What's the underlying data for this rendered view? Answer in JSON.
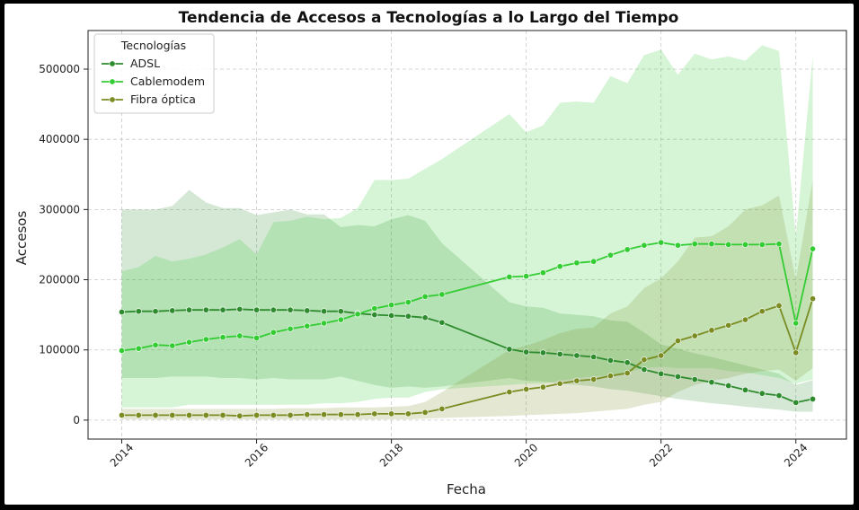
{
  "chart_data": {
    "type": "line",
    "title": "Tendencia de Accesos a Tecnologías a lo Largo del Tiempo",
    "xlabel": "Fecha",
    "ylabel": "Accesos",
    "xlim": [
      2013.5,
      2024.75
    ],
    "ylim": [
      -27000,
      555000
    ],
    "x_ticks": [
      2014,
      2016,
      2018,
      2020,
      2022,
      2024
    ],
    "y_ticks": [
      0,
      100000,
      200000,
      300000,
      400000,
      500000
    ],
    "grid": true,
    "legend": {
      "title": "Tecnologías",
      "placement": "top-left"
    },
    "x": [
      2014.0,
      2014.25,
      2014.5,
      2014.75,
      2015.0,
      2015.25,
      2015.5,
      2015.75,
      2016.0,
      2016.25,
      2016.5,
      2016.75,
      2017.0,
      2017.25,
      2017.5,
      2017.75,
      2018.0,
      2018.25,
      2018.5,
      2018.75,
      2019.75,
      2020.0,
      2020.25,
      2020.5,
      2020.75,
      2021.0,
      2021.25,
      2021.5,
      2021.75,
      2022.0,
      2022.25,
      2022.5,
      2022.75,
      2023.0,
      2023.25,
      2023.5,
      2023.75,
      2024.0,
      2024.25
    ],
    "series": [
      {
        "name": "ADSL",
        "color": "#2e8b2e",
        "values": [
          154000,
          155000,
          155000,
          156000,
          157000,
          157000,
          157000,
          158000,
          157000,
          157000,
          157000,
          156000,
          155000,
          155000,
          152000,
          150000,
          149000,
          148000,
          146000,
          139000,
          101000,
          97000,
          96000,
          94000,
          92000,
          90000,
          85000,
          82000,
          72000,
          66000,
          62000,
          58000,
          54000,
          49000,
          43000,
          38000,
          35000,
          25000,
          30000
        ],
        "band_upper": [
          300000,
          300000,
          300000,
          305000,
          328000,
          310000,
          302000,
          302000,
          292000,
          296000,
          300000,
          293000,
          293000,
          275000,
          278000,
          276000,
          286000,
          292000,
          284000,
          252000,
          168000,
          162000,
          160000,
          152000,
          150000,
          148000,
          142000,
          140000,
          125000,
          108000,
          102000,
          95000,
          90000,
          84000,
          78000,
          72000,
          66000,
          50000,
          57000
        ],
        "band_lower": [
          60000,
          60000,
          60000,
          62000,
          62000,
          62000,
          60000,
          60000,
          58000,
          60000,
          58000,
          58000,
          58000,
          62000,
          56000,
          50000,
          46000,
          48000,
          46000,
          48000,
          60000,
          56000,
          55000,
          52000,
          50000,
          48000,
          44000,
          42000,
          38000,
          34000,
          30000,
          27000,
          24000,
          22000,
          19000,
          17000,
          15000,
          12000,
          12000
        ]
      },
      {
        "name": "Cablemodem",
        "color": "#33cc33",
        "values": [
          99000,
          102000,
          107000,
          106000,
          111000,
          115000,
          118000,
          120000,
          117000,
          125000,
          130000,
          134000,
          138000,
          143000,
          151000,
          159000,
          164000,
          168000,
          176000,
          179000,
          204000,
          205000,
          210000,
          219000,
          224000,
          226000,
          235000,
          243000,
          249000,
          253000,
          249000,
          251000,
          251000,
          250000,
          250000,
          250000,
          251000,
          138000,
          244000
        ],
        "band_upper": [
          212000,
          218000,
          234000,
          226000,
          230000,
          236000,
          246000,
          258000,
          236000,
          282000,
          284000,
          290000,
          286000,
          288000,
          302000,
          342000,
          342000,
          344000,
          358000,
          372000,
          436000,
          410000,
          420000,
          452000,
          454000,
          452000,
          490000,
          480000,
          520000,
          528000,
          492000,
          522000,
          514000,
          518000,
          512000,
          534000,
          526000,
          262000,
          518000
        ],
        "band_lower": [
          18000,
          18000,
          18000,
          18000,
          22000,
          22000,
          22000,
          22000,
          22000,
          22000,
          22000,
          22000,
          24000,
          24000,
          26000,
          30000,
          32000,
          32000,
          40000,
          44000,
          50000,
          52000,
          52000,
          56000,
          60000,
          62000,
          64000,
          68000,
          74000,
          76000,
          74000,
          74000,
          74000,
          70000,
          68000,
          64000,
          60000,
          52000,
          58000
        ]
      },
      {
        "name": "Fibra óptica",
        "color": "#7a8c22",
        "values": [
          7000,
          7000,
          7000,
          7000,
          7000,
          7000,
          7000,
          6000,
          7000,
          7000,
          7000,
          8000,
          8000,
          8000,
          8000,
          9000,
          9000,
          9000,
          11000,
          16000,
          40000,
          44000,
          47000,
          52000,
          56000,
          58000,
          63000,
          67000,
          86000,
          92000,
          113000,
          120000,
          128000,
          135000,
          143000,
          155000,
          163000,
          96000,
          173000
        ],
        "band_upper": [
          16000,
          16000,
          16000,
          16000,
          16000,
          16000,
          16000,
          16000,
          16000,
          16000,
          17000,
          17000,
          17000,
          18000,
          18000,
          18000,
          19000,
          20000,
          26000,
          40000,
          100000,
          106000,
          114000,
          124000,
          130000,
          132000,
          152000,
          162000,
          188000,
          202000,
          226000,
          260000,
          262000,
          276000,
          300000,
          306000,
          320000,
          200000,
          342000
        ],
        "band_lower": [
          1000,
          1000,
          1000,
          1000,
          1000,
          1000,
          1000,
          1000,
          1000,
          1000,
          1000,
          1000,
          1000,
          1000,
          1000,
          1000,
          1000,
          1000,
          2000,
          3000,
          6000,
          7000,
          8000,
          9000,
          10000,
          12000,
          14000,
          16000,
          22000,
          26000,
          40000,
          50000,
          56000,
          60000,
          66000,
          70000,
          72000,
          56000,
          74000
        ]
      }
    ]
  }
}
